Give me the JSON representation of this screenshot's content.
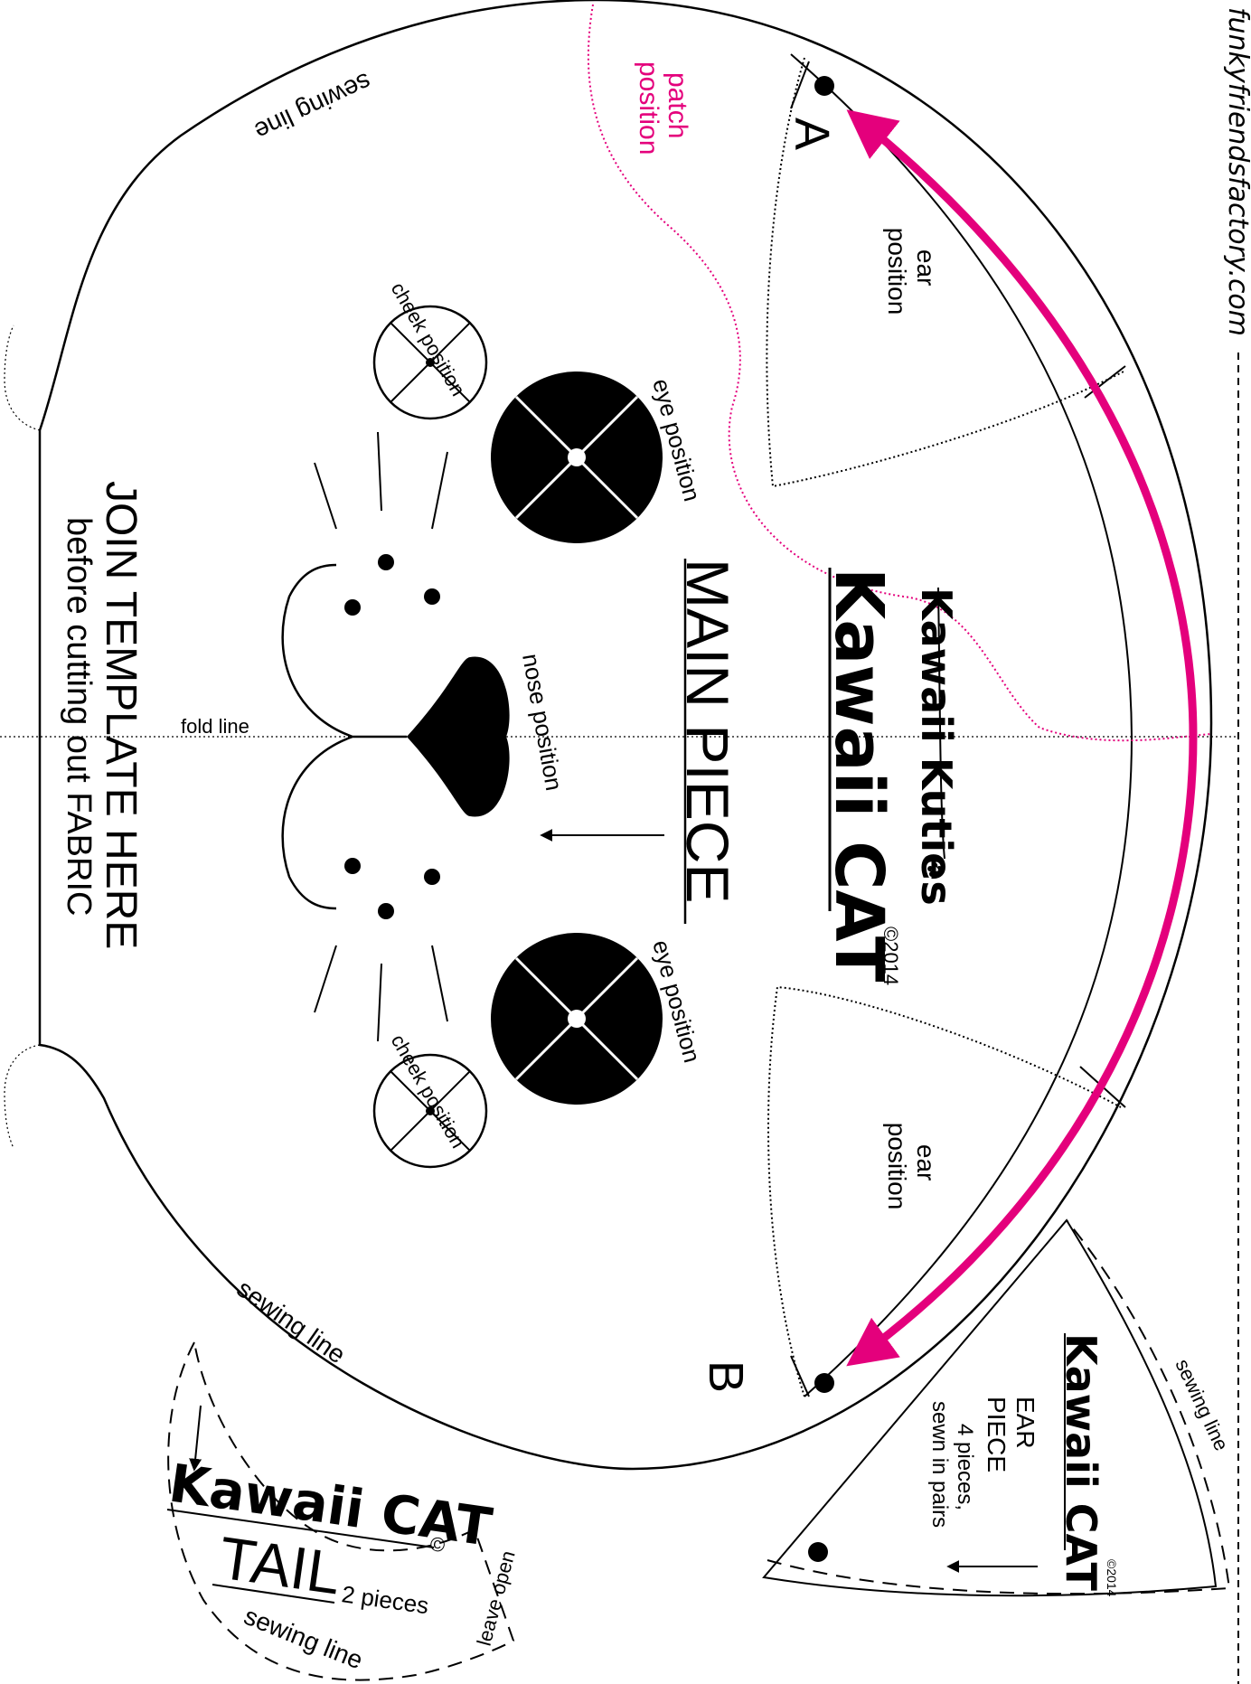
{
  "site_url": "funkyfriendsfactory.com",
  "colors": {
    "ink": "#000000",
    "accent": "#e4007c",
    "paper": "#ffffff"
  },
  "main_piece": {
    "title": "MAIN PIECE",
    "brand_line": "Kawaii Kuties",
    "product_name": "Kawaii CAT",
    "copyright": "©2014",
    "label_a": "A",
    "label_b": "B",
    "sewing_line_top": "sewing line",
    "sewing_line_bottom": "sewing line",
    "patch_position": [
      "patch",
      "position"
    ],
    "ear_position_1": [
      "ear",
      "position"
    ],
    "ear_position_2": [
      "ear",
      "position"
    ],
    "eye_position_1": "eye position",
    "eye_position_2": "eye position",
    "cheek_position_1": "cheek position",
    "cheek_position_2": "cheek position",
    "nose_position": "nose position",
    "fold_line": "fold line",
    "join_line_1": "JOIN TEMPLATE HERE",
    "join_line_2": "before cutting out FABRIC"
  },
  "ear_piece": {
    "product_name": "Kawaii CAT",
    "copyright": "©2014",
    "title_line_1": "EAR",
    "title_line_2": "PIECE",
    "count_line_1": "4 pieces,",
    "count_line_2": "sewn in pairs",
    "sewing_line": "sewing line"
  },
  "tail_piece": {
    "product_name": "Kawaii CAT",
    "copyright": "©",
    "title": "TAIL",
    "count": "2 pieces",
    "leave_open": "leave open",
    "sewing_line": "sewing line"
  }
}
